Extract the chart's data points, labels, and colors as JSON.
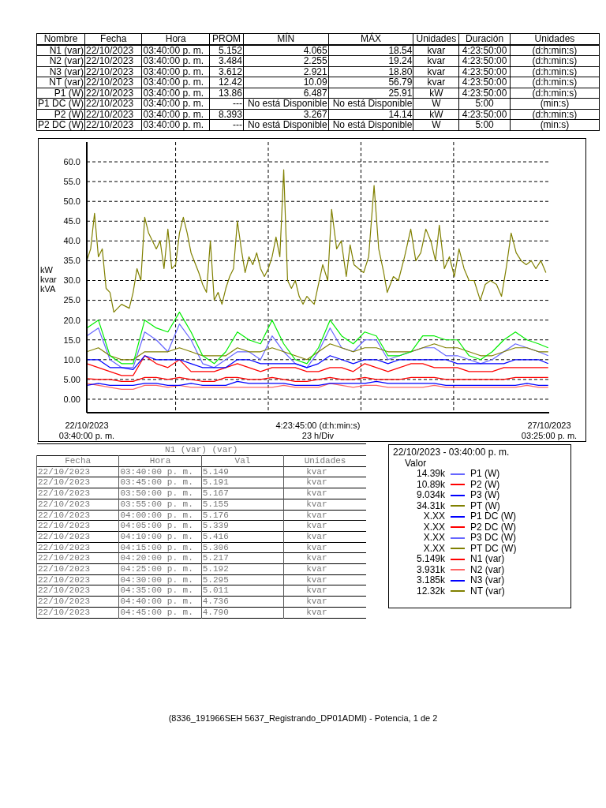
{
  "chart_data": [
    {
      "type": "other",
      "annotations": [
        "Nombre",
        "Fecha",
        "Hora",
        "PROM",
        "MÍN",
        "MÁX",
        "Unidades",
        "Duración",
        "Unidades",
        "N1 (var)",
        "22/10/2023",
        "03:40:00 p. m.",
        "5.152",
        "4.065",
        "18.54",
        "kvar",
        "4:23:50:00",
        "(d:h:min:s)",
        "N2 (var)",
        "22/10/2023",
        "03:40:00 p. m.",
        "3.484",
        "2.255",
        "19.24",
        "kvar",
        "4:23:50:00",
        "(d:h:min:s)",
        "N3 (var)",
        "22/10/2023",
        "03:40:00 p. m.",
        "3.612",
        "2.921",
        "18.80",
        "kvar",
        "4:23:50:00",
        "(d:h:min:s)",
        "NT (var)",
        "22/10/2023",
        "03:40:00 p. m.",
        "12.42",
        "10.09",
        "56.79",
        "kvar",
        "4:23:50:00",
        "(d:h:min:s)",
        "P1 (W)",
        "22/10/2023",
        "03:40:00 p. m.",
        "13.86",
        "6.487",
        "25.91",
        "kW",
        "4:23:50:00",
        "(d:h:min:s)",
        "P1 DC (W)",
        "22/10/2023",
        "03:40:00 p. m.",
        "---",
        "No está Disponible",
        "No está Disponible",
        "W",
        "5:00",
        "(min:s)",
        "P2 (W)",
        "22/10/2023",
        "03:40:00 p. m.",
        "8.393",
        "3.267",
        "14.14",
        "kW",
        "4:23:50:00",
        "(d:h:min:s)",
        "P2 DC (W)",
        "22/10/2023",
        "03:40:00 p. m.",
        "---",
        "No está Disponible",
        "No está Disponible",
        "W",
        "5:00",
        "(min:s)"
      ]
    },
    {
      "type": "line",
      "ylabel": "kW\nkvar\nkVA",
      "xlim": [
        "2023-10-22T15:40",
        "2023-10-27T15:25"
      ],
      "ylim": [
        -3.4,
        65
      ],
      "xticks": [
        {
          "value": "2023-10-22T15:40",
          "label": "22/10/2023\n03:40:00 p. m."
        },
        {
          "value": "2023-10-23T14:40",
          "label": null
        },
        {
          "value": "2023-10-24T14:40",
          "label": null
        },
        {
          "value": "2023-10-25T03:32",
          "label": "4:23:45:00 (d:h:min:s)\n23 h/Div"
        },
        {
          "value": "2023-10-25T14:40",
          "label": null
        },
        {
          "value": "2023-10-26T14:40",
          "label": null
        },
        {
          "value": "2023-10-27T15:25",
          "label": "27/10/2023\n03:25:00 p. m."
        }
      ],
      "yticks": [
        {
          "value": 0,
          "label": "0.00"
        },
        {
          "value": 5,
          "label": "5.00"
        },
        {
          "value": 10,
          "label": "10.0"
        },
        {
          "value": 15,
          "label": "15.0"
        },
        {
          "value": 20,
          "label": "20.0"
        },
        {
          "value": 25,
          "label": "25.0"
        },
        {
          "value": 30,
          "label": "30.0"
        },
        {
          "value": 35,
          "label": "35.0"
        },
        {
          "value": 40,
          "label": "40.0"
        },
        {
          "value": 45,
          "label": "45.0"
        },
        {
          "value": 50,
          "label": "50.0"
        },
        {
          "value": 55,
          "label": "55.0"
        },
        {
          "value": 60,
          "label": "60.0"
        }
      ],
      "grid": true,
      "legend": "bottom right",
      "legend_title": "22/10/2023 - 03:40:00 p. m.",
      "annotations": [
        "Valor",
        "14.39k",
        "10.89k",
        "9.034k",
        "34.31k",
        "X.XX",
        "X.XX",
        "X.XX",
        "X.XX",
        "5.149k",
        "3.931k",
        "3.185k",
        "12.32k"
      ],
      "x": [
        "2023-10-22T15:40",
        "2023-10-22T18:40",
        "2023-10-22T21:40",
        "2023-10-23T00:40",
        "2023-10-23T03:40",
        "2023-10-23T06:40",
        "2023-10-23T09:40",
        "2023-10-23T12:40",
        "2023-10-23T15:40",
        "2023-10-23T18:40",
        "2023-10-23T21:40",
        "2023-10-24T00:40",
        "2023-10-24T03:40",
        "2023-10-24T06:40",
        "2023-10-24T09:40",
        "2023-10-24T12:40",
        "2023-10-24T15:40",
        "2023-10-24T18:40",
        "2023-10-24T21:40",
        "2023-10-25T00:40",
        "2023-10-25T03:40",
        "2023-10-25T06:40",
        "2023-10-25T09:40",
        "2023-10-25T12:40",
        "2023-10-25T15:40",
        "2023-10-25T18:40",
        "2023-10-25T21:40",
        "2023-10-26T00:40",
        "2023-10-26T03:40",
        "2023-10-26T06:40",
        "2023-10-26T09:40",
        "2023-10-26T12:40",
        "2023-10-26T15:40",
        "2023-10-26T18:40",
        "2023-10-26T21:40",
        "2023-10-27T00:40",
        "2023-10-27T03:40",
        "2023-10-27T06:40",
        "2023-10-27T09:40",
        "2023-10-27T12:40",
        "2023-10-27T15:10"
      ],
      "series": [
        {
          "name": "P1 (W)",
          "color": "#6666ff",
          "values": [
            16,
            18,
            10,
            8,
            8,
            17,
            15,
            12,
            19,
            15,
            9,
            8,
            10,
            12,
            12,
            10,
            16,
            12,
            9,
            8,
            12,
            18,
            13,
            12,
            15,
            15,
            10,
            11,
            12,
            13,
            13,
            11,
            11,
            10,
            9,
            10,
            12,
            14,
            13,
            12,
            11
          ]
        },
        {
          "name": "P2 (W)",
          "color": "#ff0000",
          "values": [
            9,
            8,
            7,
            6,
            6,
            11,
            9,
            8,
            10,
            7,
            7,
            7,
            8,
            9,
            8,
            7,
            8,
            8,
            8,
            7,
            7,
            8,
            8,
            7,
            9,
            8,
            7,
            8,
            9,
            9,
            8,
            8,
            8,
            7,
            7,
            7,
            8,
            8,
            8,
            8,
            8
          ]
        },
        {
          "name": "P3 (W)",
          "color": "#0000ff",
          "values": [
            10,
            10,
            8,
            8,
            7.5,
            11,
            10,
            10,
            10,
            9,
            8,
            8,
            8,
            10,
            10,
            9,
            9,
            9,
            9,
            8,
            9,
            11,
            10,
            9,
            10,
            10,
            9,
            10,
            10,
            10,
            10,
            10,
            9,
            9,
            9,
            9,
            9,
            10,
            10,
            10,
            9
          ]
        },
        {
          "name": "PT (W)",
          "color": "#808000",
          "x": [
            "2023-10-22T15:40",
            "2023-10-22T16:40",
            "2023-10-22T17:40",
            "2023-10-22T18:40",
            "2023-10-22T19:40",
            "2023-10-22T20:40",
            "2023-10-22T21:40",
            "2023-10-22T22:40",
            "2023-10-23T00:40",
            "2023-10-23T02:40",
            "2023-10-23T03:40",
            "2023-10-23T04:40",
            "2023-10-23T05:40",
            "2023-10-23T06:40",
            "2023-10-23T07:40",
            "2023-10-23T09:40",
            "2023-10-23T10:40",
            "2023-10-23T11:40",
            "2023-10-23T12:40",
            "2023-10-23T13:40",
            "2023-10-23T14:40",
            "2023-10-23T15:40",
            "2023-10-23T16:40",
            "2023-10-23T17:40",
            "2023-10-23T18:40",
            "2023-10-23T20:40",
            "2023-10-23T21:40",
            "2023-10-23T22:40",
            "2023-10-23T23:40",
            "2023-10-24T00:40",
            "2023-10-24T01:40",
            "2023-10-24T02:40",
            "2023-10-24T03:40",
            "2023-10-24T04:40",
            "2023-10-24T05:40",
            "2023-10-24T06:40",
            "2023-10-24T07:40",
            "2023-10-24T08:40",
            "2023-10-24T09:40",
            "2023-10-24T10:40",
            "2023-10-24T11:40",
            "2023-10-24T12:40",
            "2023-10-24T13:40",
            "2023-10-24T14:40",
            "2023-10-24T15:40",
            "2023-10-24T16:40",
            "2023-10-24T17:40",
            "2023-10-24T18:40",
            "2023-10-24T19:40",
            "2023-10-24T20:40",
            "2023-10-24T21:40",
            "2023-10-24T22:40",
            "2023-10-24T23:40",
            "2023-10-25T00:40",
            "2023-10-25T02:34",
            "2023-10-25T03:52",
            "2023-10-25T04:46",
            "2023-10-25T06:04",
            "2023-10-25T07:04",
            "2023-10-25T08:22",
            "2023-10-25T09:34",
            "2023-10-25T10:52",
            "2023-10-25T11:52",
            "2023-10-25T12:52",
            "2023-10-25T14:04",
            "2023-10-25T15:22",
            "2023-10-25T16:40",
            "2023-10-25T18:04",
            "2023-10-25T19:16",
            "2023-10-25T20:34",
            "2023-10-25T21:28",
            "2023-10-25T23:04",
            "2023-10-26T00:22",
            "2023-10-26T01:58",
            "2023-10-26T03:34",
            "2023-10-26T04:52",
            "2023-10-26T06:10",
            "2023-10-26T07:28",
            "2023-10-26T08:46",
            "2023-10-26T09:58",
            "2023-10-26T10:58",
            "2023-10-26T12:16",
            "2023-10-26T13:34",
            "2023-10-26T14:52",
            "2023-10-26T16:04",
            "2023-10-26T17:22",
            "2023-10-26T18:40",
            "2023-10-26T19:58",
            "2023-10-26T21:34",
            "2023-10-26T22:52",
            "2023-10-27T00:10",
            "2023-10-27T01:46",
            "2023-10-27T03:04",
            "2023-10-27T04:16",
            "2023-10-27T05:34",
            "2023-10-27T06:52",
            "2023-10-27T08:10",
            "2023-10-27T09:28",
            "2023-10-27T10:46",
            "2023-10-27T11:58",
            "2023-10-27T13:16",
            "2023-10-27T14:34"
          ],
          "values": [
            35,
            38,
            47,
            36,
            38,
            28,
            27,
            22,
            24,
            23,
            27,
            33,
            30,
            46,
            42,
            38,
            40,
            33,
            43,
            33,
            34,
            42,
            46,
            42,
            37,
            32,
            29,
            27,
            40,
            25,
            27,
            24,
            28,
            31,
            33,
            45,
            38,
            32,
            36,
            34,
            37,
            33,
            31,
            33,
            36,
            41,
            36,
            58,
            30,
            28,
            30,
            26,
            24,
            26,
            24,
            30,
            34,
            30,
            48,
            38,
            40,
            31,
            39,
            34,
            33,
            32,
            36,
            54,
            38,
            32,
            27,
            31,
            30,
            36,
            43,
            35,
            37,
            43,
            40,
            35,
            44,
            33,
            36,
            31,
            38,
            33,
            30,
            30,
            25,
            29,
            30,
            29,
            26,
            33,
            42,
            37,
            35,
            34,
            35,
            33,
            35,
            32
          ]
        },
        {
          "name": "P1 DC (W)",
          "color": "#0000ff",
          "values": [
            null,
            null,
            null,
            null,
            null,
            null,
            null,
            null,
            null,
            null,
            null,
            null,
            null,
            null,
            null,
            null,
            null,
            null,
            null,
            null,
            null,
            null,
            null,
            null,
            null,
            null,
            null,
            null,
            null,
            null,
            null,
            null,
            null,
            null,
            null,
            null,
            null,
            null,
            null,
            null,
            null
          ]
        },
        {
          "name": "P2 DC (W)",
          "color": "#ff0000",
          "values": [
            null,
            null,
            null,
            null,
            null,
            null,
            null,
            null,
            null,
            null,
            null,
            null,
            null,
            null,
            null,
            null,
            null,
            null,
            null,
            null,
            null,
            null,
            null,
            null,
            null,
            null,
            null,
            null,
            null,
            null,
            null,
            null,
            null,
            null,
            null,
            null,
            null,
            null,
            null,
            null,
            null
          ]
        },
        {
          "name": "P3 DC (W)",
          "color": "#6666ff",
          "values": [
            null,
            null,
            null,
            null,
            null,
            null,
            null,
            null,
            null,
            null,
            null,
            null,
            null,
            null,
            null,
            null,
            null,
            null,
            null,
            null,
            null,
            null,
            null,
            null,
            null,
            null,
            null,
            null,
            null,
            null,
            null,
            null,
            null,
            null,
            null,
            null,
            null,
            null,
            null,
            null,
            null
          ]
        },
        {
          "name": "PT DC (W)",
          "color": "#808000",
          "values": [
            null,
            null,
            null,
            null,
            null,
            null,
            null,
            null,
            null,
            null,
            null,
            null,
            null,
            null,
            null,
            null,
            null,
            null,
            null,
            null,
            null,
            null,
            null,
            null,
            null,
            null,
            null,
            null,
            null,
            null,
            null,
            null,
            null,
            null,
            null,
            null,
            null,
            null,
            null,
            null,
            null
          ]
        },
        {
          "name": "N1 (var)",
          "color": "#ff0000",
          "values": [
            5.2,
            5,
            5,
            4.5,
            4.5,
            5.5,
            5.5,
            5,
            5.5,
            5,
            4.5,
            4.5,
            5.5,
            5.5,
            5,
            5,
            5.5,
            5,
            4.5,
            4.5,
            5,
            5.5,
            5,
            5,
            5.5,
            5,
            5,
            5,
            5.5,
            5.5,
            5.5,
            5,
            5,
            5,
            5,
            5,
            5,
            5.5,
            5.5,
            5.5,
            5.5
          ]
        },
        {
          "name": "N2 (var)",
          "color": "#ff6666",
          "values": [
            4,
            3.5,
            3,
            2.5,
            2.5,
            3.5,
            3.5,
            3,
            3.5,
            3,
            3,
            3,
            3,
            3,
            3,
            3,
            3,
            3.5,
            3,
            3,
            3,
            4,
            3.5,
            3,
            3.5,
            3.5,
            3,
            3,
            3,
            3,
            3.5,
            3,
            3,
            3,
            3,
            3,
            3,
            3,
            3.5,
            3,
            3
          ]
        },
        {
          "name": "N3 (var)",
          "color": "#0000ff",
          "values": [
            3.5,
            4,
            3.5,
            3.5,
            3.5,
            4,
            4,
            3.5,
            3.5,
            4,
            3.5,
            3.5,
            3.5,
            4.5,
            4,
            4,
            4,
            4,
            3.5,
            3.5,
            3.5,
            4,
            4,
            4,
            4,
            4.5,
            4,
            4,
            4,
            4,
            4,
            3.5,
            3.5,
            3.5,
            3.5,
            3.5,
            3.5,
            3.5,
            4,
            3.5,
            3.5
          ]
        },
        {
          "name": "NT (var)",
          "color": "#808000",
          "values": [
            12,
            13,
            11,
            10,
            10,
            12,
            12,
            12,
            13,
            12,
            11,
            11,
            11,
            13,
            12,
            12,
            13,
            12,
            11,
            10,
            12,
            14,
            13,
            12,
            13,
            13,
            12,
            12,
            12,
            13,
            14,
            13,
            13,
            12,
            11,
            11,
            12,
            13,
            13,
            12,
            12
          ]
        },
        {
          "color": "#00ee00",
          "values": [
            18,
            20,
            11,
            9,
            9,
            20,
            18,
            17,
            22,
            17,
            11,
            9,
            12,
            17,
            15,
            14,
            20,
            14,
            10,
            9,
            13,
            20,
            16,
            14,
            17,
            16,
            11,
            11,
            12,
            16,
            16,
            15,
            15,
            11,
            10,
            12,
            15,
            17,
            15,
            14,
            13
          ]
        }
      ]
    },
    {
      "type": "other",
      "title": "N1 (var) (var)",
      "annotations": [
        "Fecha",
        "Hora",
        "Val",
        "Unidades",
        "22/10/2023",
        "03:40:00 p. m.",
        "5.149",
        "kvar",
        "22/10/2023",
        "03:45:00 p. m.",
        "5.191",
        "kvar",
        "22/10/2023",
        "03:50:00 p. m.",
        "5.167",
        "kvar",
        "22/10/2023",
        "03:55:00 p. m.",
        "5.155",
        "kvar",
        "22/10/2023",
        "04:00:00 p. m.",
        "5.176",
        "kvar",
        "22/10/2023",
        "04:05:00 p. m.",
        "5.339",
        "kvar",
        "22/10/2023",
        "04:10:00 p. m.",
        "5.416",
        "kvar",
        "22/10/2023",
        "04:15:00 p. m.",
        "5.306",
        "kvar",
        "22/10/2023",
        "04:20:00 p. m.",
        "5.217",
        "kvar",
        "22/10/2023",
        "04:25:00 p. m.",
        "5.192",
        "kvar",
        "22/10/2023",
        "04:30:00 p. m.",
        "5.295",
        "kvar",
        "22/10/2023",
        "04:35:00 p. m.",
        "5.011",
        "kvar",
        "22/10/2023",
        "04:40:00 p. m.",
        "4.736",
        "kvar",
        "22/10/2023",
        "04:45:00 p. m.",
        "4.790",
        "kvar"
      ]
    },
    {
      "type": "other",
      "annotations": [
        "(8336_191966SEH 5637_Registrando_DP01ADMI) - Potencia, 1 de 2"
      ]
    }
  ]
}
